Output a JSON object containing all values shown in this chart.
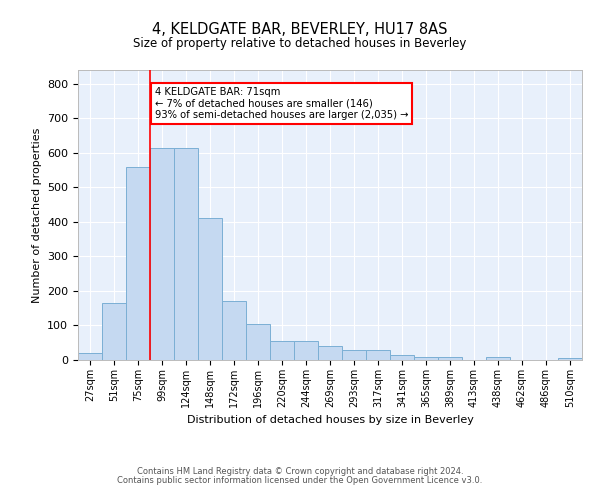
{
  "title": "4, KELDGATE BAR, BEVERLEY, HU17 8AS",
  "subtitle": "Size of property relative to detached houses in Beverley",
  "xlabel": "Distribution of detached houses by size in Beverley",
  "ylabel": "Number of detached properties",
  "bar_color": "#c5d9f1",
  "bar_edge_color": "#7bafd4",
  "background_color": "#e8f0fb",
  "grid_color": "#ffffff",
  "categories": [
    "27sqm",
    "51sqm",
    "75sqm",
    "99sqm",
    "124sqm",
    "148sqm",
    "172sqm",
    "196sqm",
    "220sqm",
    "244sqm",
    "269sqm",
    "293sqm",
    "317sqm",
    "341sqm",
    "365sqm",
    "389sqm",
    "413sqm",
    "438sqm",
    "462sqm",
    "486sqm",
    "510sqm"
  ],
  "values": [
    20,
    165,
    560,
    615,
    615,
    410,
    170,
    105,
    55,
    55,
    40,
    30,
    30,
    15,
    10,
    10,
    0,
    8,
    0,
    0,
    7
  ],
  "red_line_x": 2.5,
  "annotation_text": "4 KELDGATE BAR: 71sqm\n← 7% of detached houses are smaller (146)\n93% of semi-detached houses are larger (2,035) →",
  "annotation_box_color": "white",
  "annotation_box_edge_color": "red",
  "ylim": [
    0,
    840
  ],
  "yticks": [
    0,
    100,
    200,
    300,
    400,
    500,
    600,
    700,
    800
  ],
  "footer1": "Contains HM Land Registry data © Crown copyright and database right 2024.",
  "footer2": "Contains public sector information licensed under the Open Government Licence v3.0."
}
